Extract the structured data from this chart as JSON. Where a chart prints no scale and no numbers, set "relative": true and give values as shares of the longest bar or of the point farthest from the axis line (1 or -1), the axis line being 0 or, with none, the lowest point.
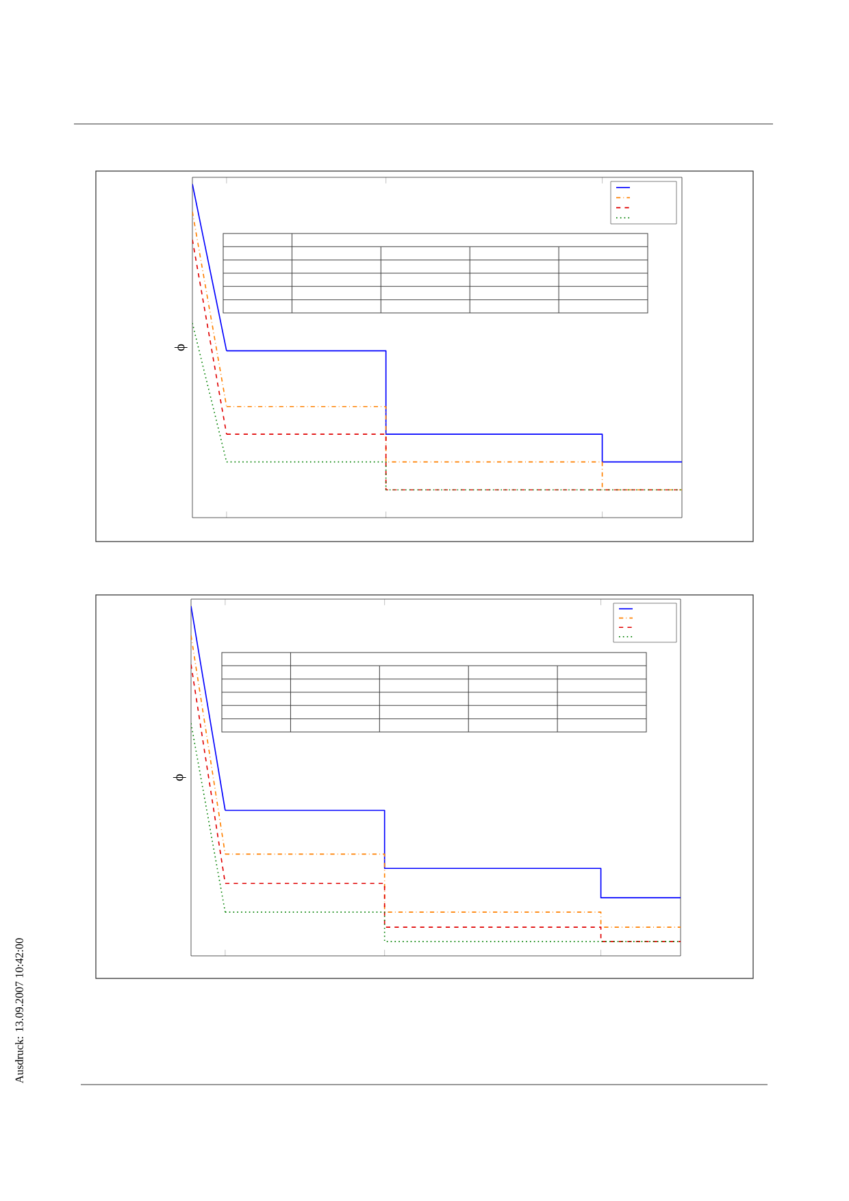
{
  "chart_data": [
    {
      "type": "line",
      "relative": true,
      "ylabel": "ϕ",
      "categories": [
        null,
        null,
        null,
        null,
        null,
        null,
        null,
        null,
        null,
        null,
        null,
        null,
        null,
        null,
        null,
        null,
        null,
        null,
        null,
        null,
        null,
        null,
        null,
        null,
        null,
        null,
        null,
        null,
        null,
        null,
        null,
        null,
        null,
        null,
        null,
        null,
        null,
        null,
        null,
        null,
        null,
        null,
        null,
        null
      ],
      "series": [
        {
          "type": "line",
          "color": "#0000ff",
          "line_style": "solid",
          "values": [
            1,
            0.833,
            0.667,
            0.5,
            null,
            null,
            null,
            null,
            null,
            null,
            null,
            null,
            null,
            null,
            null,
            null,
            null,
            null,
            null,
            null,
            null,
            null,
            null,
            null,
            null,
            null,
            null,
            null,
            null,
            null,
            null,
            null,
            null,
            null,
            null,
            null,
            null,
            null,
            null,
            null,
            null,
            null,
            null,
            null
          ]
        },
        {
          "type": "step",
          "color": "#0000ff",
          "line_style": "solid",
          "values": [
            null,
            null,
            null,
            0.5,
            0.5,
            0.5,
            0.5,
            0.5,
            0.5,
            0.5,
            0.5,
            0.5,
            0.5,
            0.5,
            0.5,
            0.5,
            0.5,
            0.25,
            0.25,
            0.25,
            0.25,
            0.25,
            0.25,
            0.25,
            0.25,
            0.25,
            0.25,
            0.25,
            0.25,
            0.25,
            0.25,
            0.25,
            0.25,
            0.25,
            0.25,
            0.25,
            0.167,
            0.167,
            0.167,
            0.167,
            0.167,
            0.167,
            0.167,
            0.167
          ]
        },
        {
          "type": "line",
          "color": "#ff8000",
          "line_style": "dashdot",
          "values": [
            0.917,
            0.722,
            0.528,
            0.333,
            null,
            null,
            null,
            null,
            null,
            null,
            null,
            null,
            null,
            null,
            null,
            null,
            null,
            null,
            null,
            null,
            null,
            null,
            null,
            null,
            null,
            null,
            null,
            null,
            null,
            null,
            null,
            null,
            null,
            null,
            null,
            null,
            null,
            null,
            null,
            null,
            null,
            null,
            null,
            null
          ]
        },
        {
          "type": "step",
          "color": "#ff8000",
          "line_style": "dashdot",
          "values": [
            null,
            null,
            null,
            0.333,
            0.333,
            0.333,
            0.333,
            0.333,
            0.333,
            0.333,
            0.333,
            0.333,
            0.333,
            0.333,
            0.333,
            0.333,
            0.333,
            0.167,
            0.167,
            0.167,
            0.167,
            0.167,
            0.167,
            0.167,
            0.167,
            0.167,
            0.167,
            0.167,
            0.167,
            0.167,
            0.167,
            0.167,
            0.167,
            0.167,
            0.167,
            0.167,
            0.083,
            0.083,
            0.083,
            0.083,
            0.083,
            0.083,
            0.083,
            0.083
          ]
        },
        {
          "type": "line",
          "color": "#e00000",
          "line_style": "dashed",
          "values": [
            0.833,
            0.639,
            0.444,
            0.25,
            null,
            null,
            null,
            null,
            null,
            null,
            null,
            null,
            null,
            null,
            null,
            null,
            null,
            null,
            null,
            null,
            null,
            null,
            null,
            null,
            null,
            null,
            null,
            null,
            null,
            null,
            null,
            null,
            null,
            null,
            null,
            null,
            null,
            null,
            null,
            null,
            null,
            null,
            null,
            null
          ]
        },
        {
          "type": "step",
          "color": "#e00000",
          "line_style": "dashed",
          "values": [
            null,
            null,
            null,
            0.25,
            0.25,
            0.25,
            0.25,
            0.25,
            0.25,
            0.25,
            0.25,
            0.25,
            0.25,
            0.25,
            0.25,
            0.25,
            0.25,
            0.083,
            0.083,
            0.083,
            0.083,
            0.083,
            0.083,
            0.083,
            0.083,
            0.083,
            0.083,
            0.083,
            0.083,
            0.083,
            0.083,
            0.083,
            0.083,
            0.083,
            0.083,
            0.083,
            0.083,
            0.083,
            0.083,
            0.083,
            0.083,
            0.083,
            0.083,
            0.083
          ]
        },
        {
          "type": "line",
          "color": "#008000",
          "line_style": "dotted",
          "values": [
            0.583,
            0.444,
            0.306,
            0.167,
            null,
            null,
            null,
            null,
            null,
            null,
            null,
            null,
            null,
            null,
            null,
            null,
            null,
            null,
            null,
            null,
            null,
            null,
            null,
            null,
            null,
            null,
            null,
            null,
            null,
            null,
            null,
            null,
            null,
            null,
            null,
            null,
            null,
            null,
            null,
            null,
            null,
            null,
            null,
            null
          ]
        },
        {
          "type": "step",
          "color": "#008000",
          "line_style": "dotted",
          "values": [
            null,
            null,
            null,
            0.167,
            0.167,
            0.167,
            0.167,
            0.167,
            0.167,
            0.167,
            0.167,
            0.167,
            0.167,
            0.167,
            0.167,
            0.167,
            0.167,
            0.083,
            0.083,
            0.083,
            0.083,
            0.083,
            0.083,
            0.083,
            0.083,
            0.083,
            0.083,
            0.083,
            0.083,
            0.083,
            0.083,
            0.083,
            0.083,
            0.083,
            0.083,
            0.083,
            0.083,
            0.083,
            0.083,
            0.083,
            0.083,
            0.083,
            0.083,
            0.083
          ]
        }
      ]
    },
    {
      "type": "line",
      "relative": true,
      "ylabel": "ϕ",
      "annotations": [
        "Ausdruck: 13.09.2007 10:42:00"
      ],
      "categories": [
        null,
        null,
        null,
        null,
        null,
        null,
        null,
        null,
        null,
        null,
        null,
        null,
        null,
        null,
        null,
        null,
        null,
        null,
        null,
        null,
        null,
        null,
        null,
        null,
        null,
        null,
        null,
        null,
        null,
        null,
        null,
        null,
        null,
        null,
        null,
        null,
        null,
        null,
        null,
        null,
        null,
        null,
        null,
        null
      ],
      "series": [
        {
          "type": "line",
          "color": "#0000ff",
          "line_style": "solid",
          "values": [
            1,
            0.805,
            0.611,
            0.416,
            null,
            null,
            null,
            null,
            null,
            null,
            null,
            null,
            null,
            null,
            null,
            null,
            null,
            null,
            null,
            null,
            null,
            null,
            null,
            null,
            null,
            null,
            null,
            null,
            null,
            null,
            null,
            null,
            null,
            null,
            null,
            null,
            null,
            null,
            null,
            null,
            null,
            null,
            null,
            null
          ]
        },
        {
          "type": "step",
          "color": "#0000ff",
          "line_style": "solid",
          "values": [
            null,
            null,
            null,
            0.416,
            0.416,
            0.416,
            0.416,
            0.416,
            0.416,
            0.416,
            0.416,
            0.416,
            0.416,
            0.416,
            0.416,
            0.416,
            0.416,
            0.25,
            0.25,
            0.25,
            0.25,
            0.25,
            0.25,
            0.25,
            0.25,
            0.25,
            0.25,
            0.25,
            0.25,
            0.25,
            0.25,
            0.25,
            0.25,
            0.25,
            0.25,
            0.25,
            0.166,
            0.166,
            0.166,
            0.166,
            0.166,
            0.166,
            0.166,
            0.166
          ]
        },
        {
          "type": "line",
          "color": "#ff8000",
          "line_style": "dashdot",
          "values": [
            0.916,
            0.708,
            0.5,
            0.291,
            null,
            null,
            null,
            null,
            null,
            null,
            null,
            null,
            null,
            null,
            null,
            null,
            null,
            null,
            null,
            null,
            null,
            null,
            null,
            null,
            null,
            null,
            null,
            null,
            null,
            null,
            null,
            null,
            null,
            null,
            null,
            null,
            null,
            null,
            null,
            null,
            null,
            null,
            null,
            null
          ]
        },
        {
          "type": "step",
          "color": "#ff8000",
          "line_style": "dashdot",
          "values": [
            null,
            null,
            null,
            0.291,
            0.291,
            0.291,
            0.291,
            0.291,
            0.291,
            0.291,
            0.291,
            0.291,
            0.291,
            0.291,
            0.291,
            0.291,
            0.291,
            0.125,
            0.125,
            0.125,
            0.125,
            0.125,
            0.125,
            0.125,
            0.125,
            0.125,
            0.125,
            0.125,
            0.125,
            0.125,
            0.125,
            0.125,
            0.125,
            0.125,
            0.125,
            0.125,
            0.082,
            0.082,
            0.082,
            0.082,
            0.082,
            0.082,
            0.082,
            0.082
          ]
        },
        {
          "type": "line",
          "color": "#e00000",
          "line_style": "dashed",
          "values": [
            0.833,
            0.624,
            0.416,
            0.207,
            null,
            null,
            null,
            null,
            null,
            null,
            null,
            null,
            null,
            null,
            null,
            null,
            null,
            null,
            null,
            null,
            null,
            null,
            null,
            null,
            null,
            null,
            null,
            null,
            null,
            null,
            null,
            null,
            null,
            null,
            null,
            null,
            null,
            null,
            null,
            null,
            null,
            null,
            null,
            null
          ]
        },
        {
          "type": "step",
          "color": "#e00000",
          "line_style": "dashed",
          "values": [
            null,
            null,
            null,
            0.207,
            0.207,
            0.207,
            0.207,
            0.207,
            0.207,
            0.207,
            0.207,
            0.207,
            0.207,
            0.207,
            0.207,
            0.207,
            0.207,
            0.082,
            0.082,
            0.082,
            0.082,
            0.082,
            0.082,
            0.082,
            0.082,
            0.082,
            0.082,
            0.082,
            0.082,
            0.082,
            0.082,
            0.082,
            0.082,
            0.082,
            0.082,
            0.082,
            0.041,
            0.041,
            0.041,
            0.041,
            0.041,
            0.041,
            0.041,
            0.041
          ]
        },
        {
          "type": "line",
          "color": "#008000",
          "line_style": "dotted",
          "values": [
            0.665,
            0.485,
            0.305,
            0.125,
            null,
            null,
            null,
            null,
            null,
            null,
            null,
            null,
            null,
            null,
            null,
            null,
            null,
            null,
            null,
            null,
            null,
            null,
            null,
            null,
            null,
            null,
            null,
            null,
            null,
            null,
            null,
            null,
            null,
            null,
            null,
            null,
            null,
            null,
            null,
            null,
            null,
            null,
            null,
            null
          ]
        },
        {
          "type": "step",
          "color": "#008000",
          "line_style": "dotted",
          "values": [
            null,
            null,
            null,
            0.125,
            0.125,
            0.125,
            0.125,
            0.125,
            0.125,
            0.125,
            0.125,
            0.125,
            0.125,
            0.125,
            0.125,
            0.125,
            0.125,
            0.041,
            0.041,
            0.041,
            0.041,
            0.041,
            0.041,
            0.041,
            0.041,
            0.041,
            0.041,
            0.041,
            0.041,
            0.041,
            0.041,
            0.041,
            0.041,
            0.041,
            0.041,
            0.041,
            0.041,
            0.041,
            0.041,
            0.041,
            0.041,
            0.041,
            0.041,
            0.041
          ]
        }
      ]
    }
  ]
}
